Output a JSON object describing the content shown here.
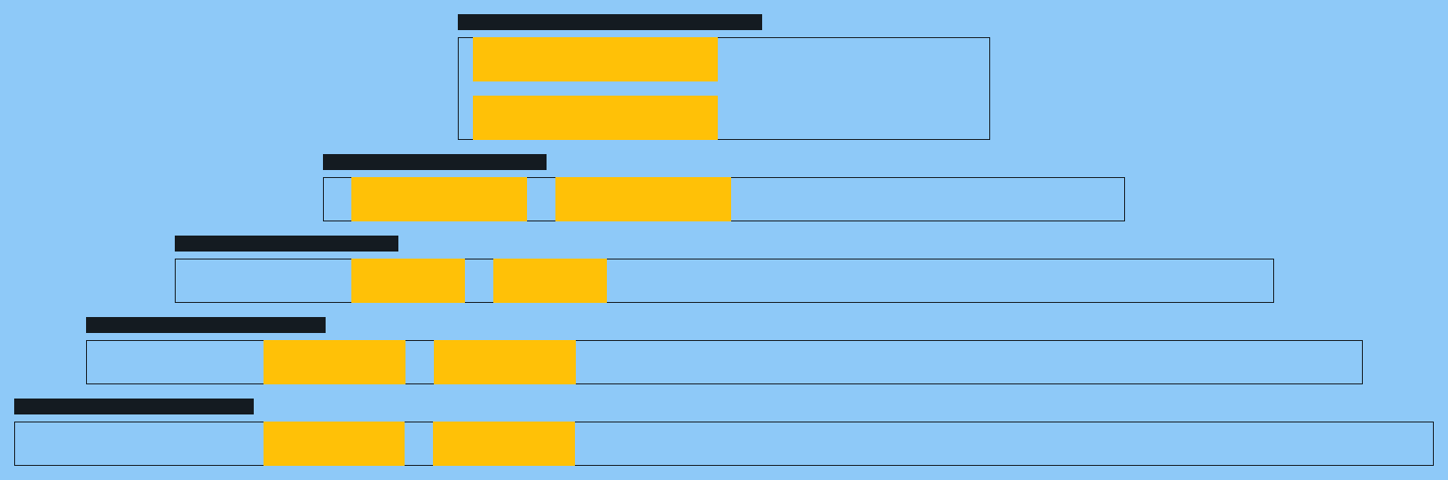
{
  "colors": {
    "background": "#8ec9f8",
    "label_bar": "#141b21",
    "border": "#141b21",
    "block": "#ffc107"
  },
  "rows": [
    {
      "label_bar_icon": "label-bar",
      "block_count": 2,
      "block_layout": "stacked"
    },
    {
      "label_bar_icon": "label-bar",
      "block_count": 2,
      "block_layout": "inline"
    },
    {
      "label_bar_icon": "label-bar",
      "block_count": 2,
      "block_layout": "inline"
    },
    {
      "label_bar_icon": "label-bar",
      "block_count": 2,
      "block_layout": "inline"
    },
    {
      "label_bar_icon": "label-bar",
      "block_count": 2,
      "block_layout": "inline"
    }
  ]
}
